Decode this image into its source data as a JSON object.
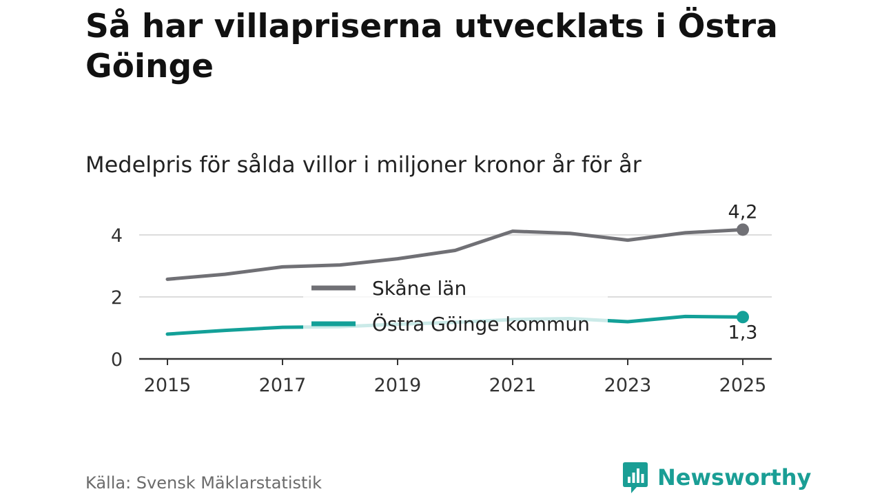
{
  "header": {
    "title": "Så har villapriserna utvecklats i Östra Göinge",
    "subtitle": "Medelpris för sålda villor i miljoner kronor år för år"
  },
  "footer": {
    "source": "Källa: Svensk Mäklarstatistik",
    "brand": "Newsworthy"
  },
  "colors": {
    "skane": "#707075",
    "goinge": "#13a098",
    "grid": "#dcdcdc",
    "axis": "#333333"
  },
  "chart_data": {
    "type": "line",
    "title": "Medelpris för sålda villor i miljoner kronor år för år",
    "xlabel": "",
    "ylabel": "",
    "x": [
      2015,
      2016,
      2017,
      2018,
      2019,
      2020,
      2021,
      2022,
      2023,
      2024,
      2025
    ],
    "xticks": [
      2015,
      2017,
      2019,
      2021,
      2023,
      2025
    ],
    "xlim": [
      2015,
      2025
    ],
    "yticks": [
      0,
      2,
      4
    ],
    "ylim": [
      0,
      4.2
    ],
    "grid": true,
    "legend_position": "center",
    "series": [
      {
        "name": "Skåne län",
        "values": [
          2.57,
          2.73,
          2.97,
          3.03,
          3.23,
          3.5,
          4.12,
          4.05,
          3.83,
          4.07,
          4.17
        ],
        "end_label": "4,2"
      },
      {
        "name": "Östra Göinge kommun",
        "values": [
          0.8,
          0.92,
          1.02,
          1.04,
          1.12,
          1.18,
          1.27,
          1.3,
          1.2,
          1.37,
          1.35
        ],
        "end_label": "1,3"
      }
    ]
  }
}
